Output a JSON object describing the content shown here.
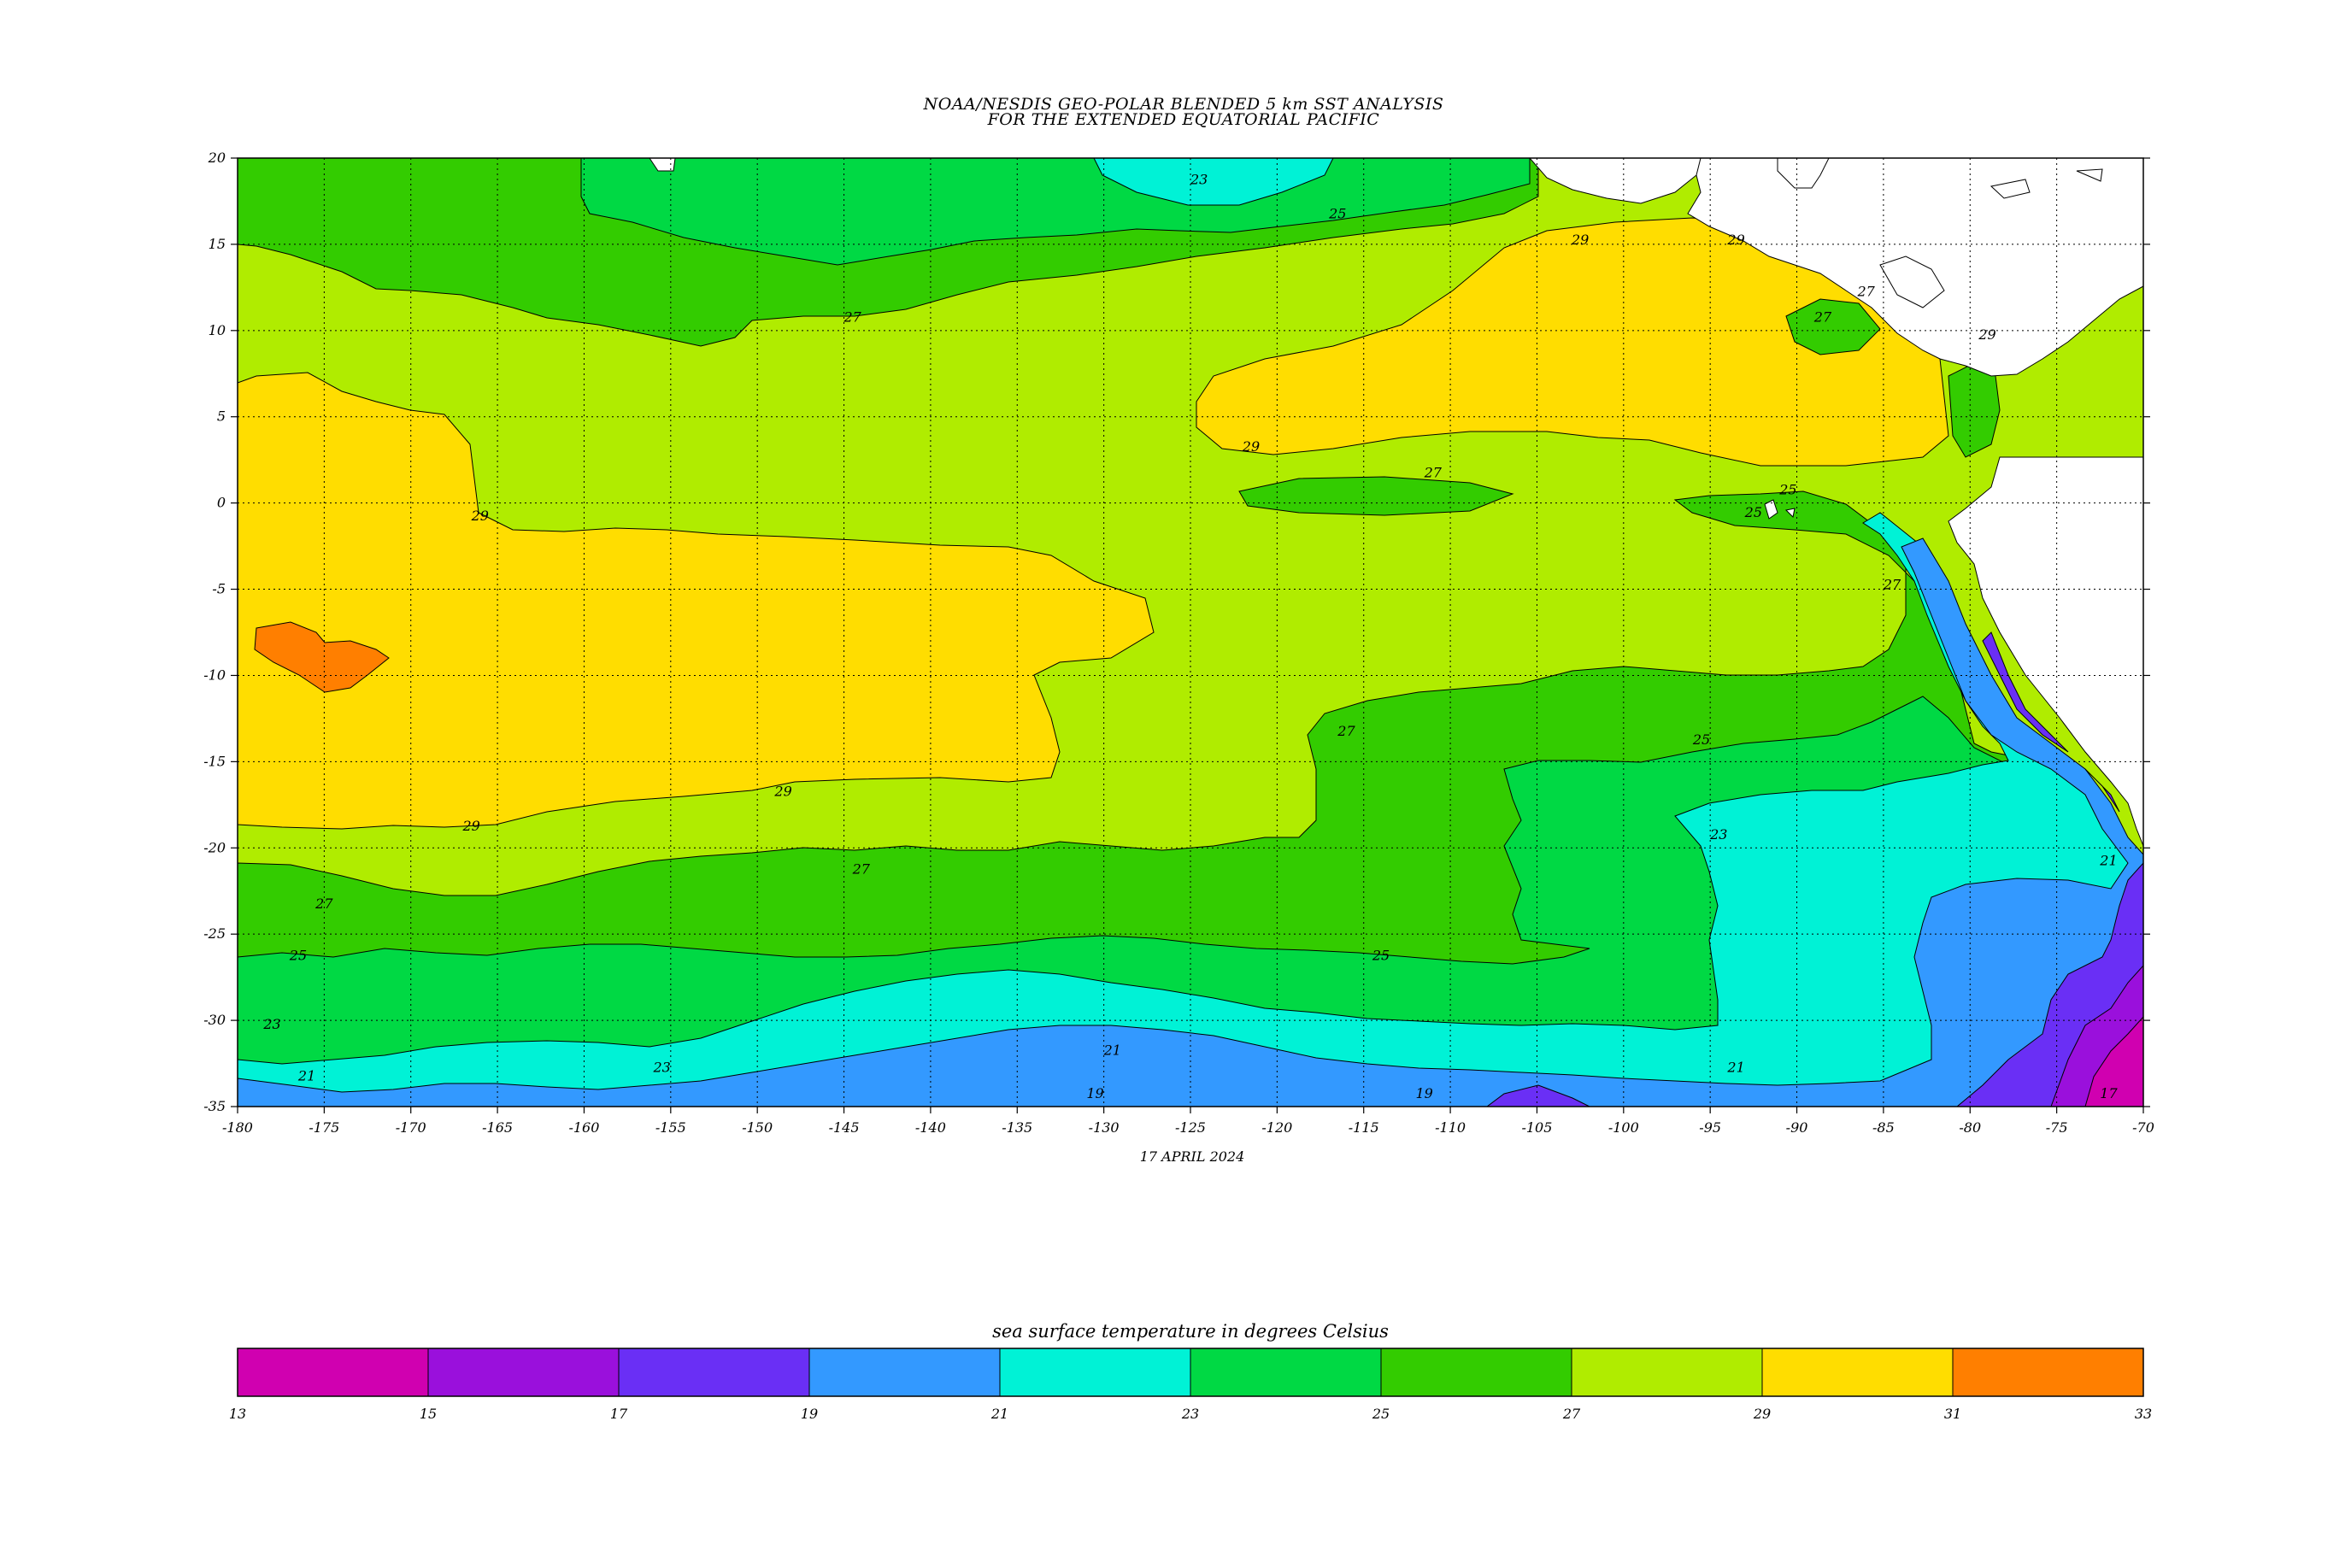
{
  "title": {
    "line1": "NOAA/NESDIS GEO-POLAR BLENDED 5 km SST ANALYSIS",
    "line2": "FOR THE EXTENDED EQUATORIAL PACIFIC"
  },
  "date": "17 APRIL 2024",
  "axes": {
    "lon_range": [
      -180,
      -70
    ],
    "lat_range": [
      -35,
      20
    ],
    "lon_ticks": [
      "-180",
      "-175",
      "-170",
      "-165",
      "-160",
      "-155",
      "-150",
      "-145",
      "-140",
      "-135",
      "-130",
      "-125",
      "-120",
      "-115",
      "-110",
      "-105",
      "-100",
      "-95",
      "-90",
      "-85",
      "-80",
      "-75",
      "-70"
    ],
    "lat_ticks": [
      "20",
      "15",
      "10",
      "5",
      "0",
      "-5",
      "-10",
      "-15",
      "-20",
      "-25",
      "-30",
      "-35"
    ],
    "grid": "dotted"
  },
  "legend": {
    "title": "sea surface temperature in degrees Celsius",
    "labels": [
      "13",
      "15",
      "17",
      "19",
      "21",
      "23",
      "25",
      "27",
      "29",
      "31",
      "33"
    ],
    "colors": [
      "#d000b0",
      "#9a10dc",
      "#6a2ff5",
      "#3399ff",
      "#00f2d6",
      "#00d944",
      "#33cc00",
      "#b0ec00",
      "#ffdd00",
      "#ff7f00"
    ]
  },
  "contour_labels": [
    {
      "text": "23",
      "lon": -124.5,
      "lat": 18.5
    },
    {
      "text": "25",
      "lon": -116.5,
      "lat": 16.5
    },
    {
      "text": "29",
      "lon": -102.5,
      "lat": 15
    },
    {
      "text": "29",
      "lon": -93.5,
      "lat": 15
    },
    {
      "text": "27",
      "lon": -144.5,
      "lat": 10.5
    },
    {
      "text": "27",
      "lon": -88.5,
      "lat": 10.5
    },
    {
      "text": "27",
      "lon": -86,
      "lat": 12
    },
    {
      "text": "29",
      "lon": -79,
      "lat": 9.5
    },
    {
      "text": "29",
      "lon": -121.5,
      "lat": 3
    },
    {
      "text": "27",
      "lon": -111,
      "lat": 1.5
    },
    {
      "text": "29",
      "lon": -166,
      "lat": -1
    },
    {
      "text": "25",
      "lon": -90.5,
      "lat": 0.5
    },
    {
      "text": "25",
      "lon": -92.5,
      "lat": -0.8
    },
    {
      "text": "27",
      "lon": -84.5,
      "lat": -5
    },
    {
      "text": "27",
      "lon": -116,
      "lat": -13.5
    },
    {
      "text": "25",
      "lon": -95.5,
      "lat": -14
    },
    {
      "text": "29",
      "lon": -148.5,
      "lat": -17
    },
    {
      "text": "29",
      "lon": -166.5,
      "lat": -19
    },
    {
      "text": "23",
      "lon": -94.5,
      "lat": -19.5
    },
    {
      "text": "27",
      "lon": -144,
      "lat": -21.5
    },
    {
      "text": "27",
      "lon": -175,
      "lat": -23.5
    },
    {
      "text": "21",
      "lon": -72,
      "lat": -21
    },
    {
      "text": "25",
      "lon": -176.5,
      "lat": -26.5
    },
    {
      "text": "25",
      "lon": -114,
      "lat": -26.5
    },
    {
      "text": "23",
      "lon": -178,
      "lat": -30.5
    },
    {
      "text": "21",
      "lon": -176,
      "lat": -33.5
    },
    {
      "text": "23",
      "lon": -155.5,
      "lat": -33
    },
    {
      "text": "21",
      "lon": -129.5,
      "lat": -32
    },
    {
      "text": "21",
      "lon": -93.5,
      "lat": -33
    },
    {
      "text": "19",
      "lon": -130.5,
      "lat": -34.5
    },
    {
      "text": "19",
      "lon": -111.5,
      "lat": -34.5
    },
    {
      "text": "17",
      "lon": -72,
      "lat": -34.5
    }
  ]
}
